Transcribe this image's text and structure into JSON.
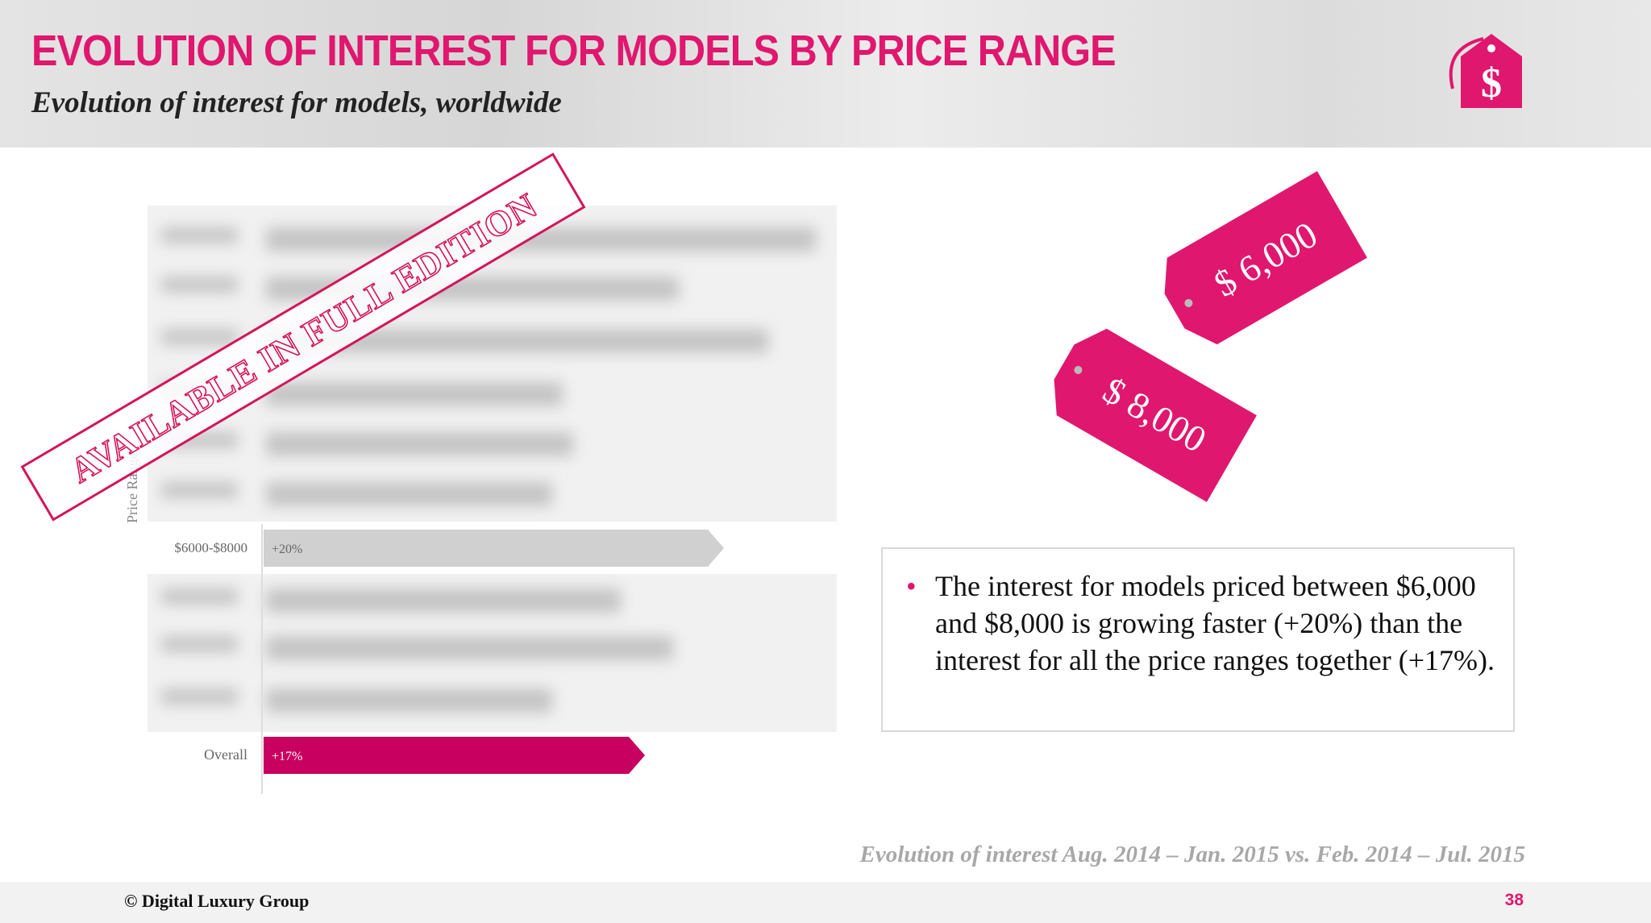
{
  "header": {
    "title": "EVOLUTION OF INTEREST FOR MODELS BY PRICE RANGE",
    "subtitle": "Evolution of interest for models, worldwide"
  },
  "chart": {
    "axis_label": "Price Range",
    "rows": [
      {
        "label": "$6000-$8000",
        "value_label": "+20%"
      },
      {
        "label": "Overall",
        "value_label": "+17%"
      }
    ]
  },
  "stamp": "AVAILABLE IN FULL EDITION",
  "price_tags": [
    "$ 6,000",
    "$ 8,000"
  ],
  "note": {
    "bullet": "The interest for models priced between $6,000 and $8,000 is growing faster (+20%) than the interest for all the price ranges together (+17%)."
  },
  "source": "Evolution of interest Aug. 2014 – Jan. 2015 vs. Feb. 2014 – Jul. 2015",
  "footer": {
    "copyright": "© Digital Luxury Group",
    "page": "38"
  }
}
